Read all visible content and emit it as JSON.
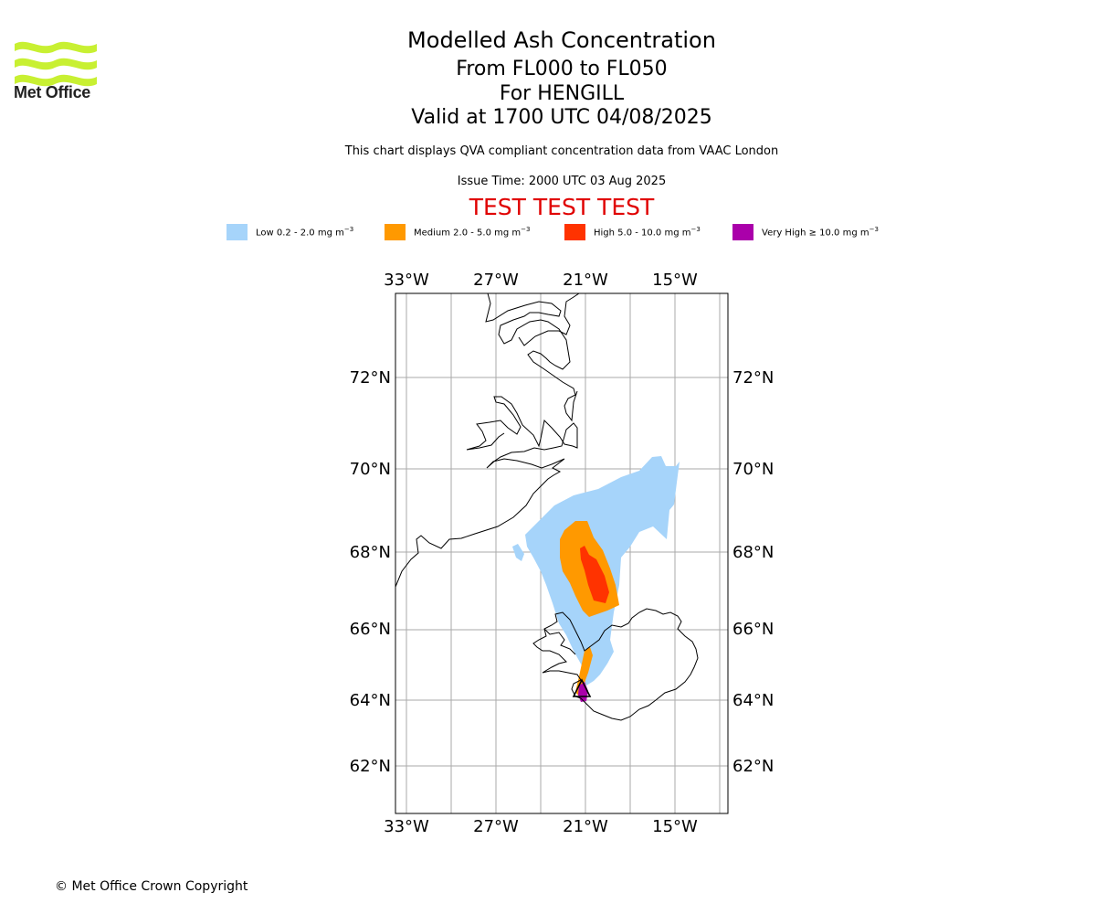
{
  "header": {
    "logo_text": "Met Office",
    "title": "Modelled Ash Concentration",
    "level_range": "From FL000 to FL050",
    "location": "For HENGILL",
    "valid_time": "Valid at 1700 UTC 04/08/2025",
    "compliance_note": "This chart displays QVA compliant concentration data from VAAC London",
    "issue_time": "Issue Time: 2000 UTC 03 Aug 2025",
    "test_banner": "TEST TEST TEST"
  },
  "legend": [
    {
      "label": "Low 0.2 - 2.0 mg m",
      "exp": "−3",
      "color": "#a6d4fa"
    },
    {
      "label": "Medium 2.0 - 5.0 mg m",
      "exp": "−3",
      "color": "#ff9900"
    },
    {
      "label": "High 5.0 - 10.0 mg m",
      "exp": "−3",
      "color": "#ff3300"
    },
    {
      "label": "Very High ≥ 10.0 mg m",
      "exp": "−3",
      "color": "#aa00aa"
    }
  ],
  "map": {
    "longitude_labels": [
      "33°W",
      "27°W",
      "21°W",
      "15°W"
    ],
    "latitude_labels": [
      "72°N",
      "70°N",
      "68°N",
      "66°N",
      "64°N",
      "62°N"
    ],
    "volcano_icon": "triangle-icon"
  },
  "footer": {
    "copyright": "© Met Office Crown Copyright"
  }
}
